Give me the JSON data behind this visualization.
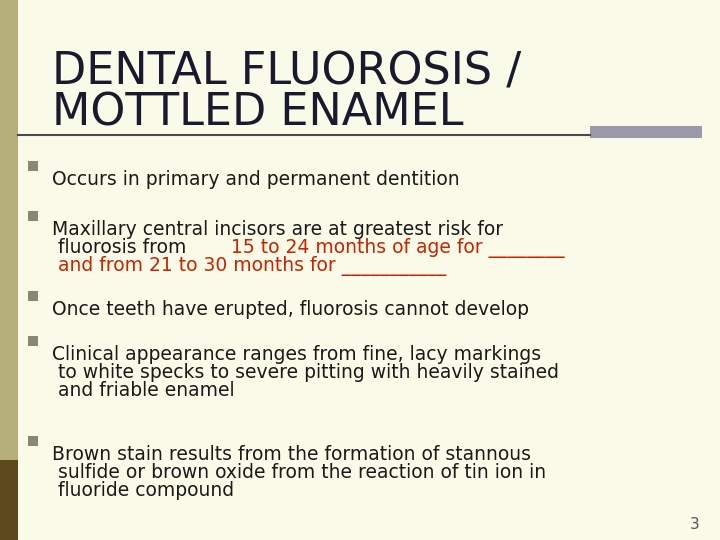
{
  "background_color": "#FAFAE8",
  "title_line1": "DENTAL FLUOROSIS /",
  "title_line2": "MOTTLED ENAMEL",
  "title_color": "#1a1a2e",
  "title_fontsize": 32,
  "divider_color": "#4a4a4a",
  "divider_accent_color": "#9999aa",
  "left_bar_color": "#5c4a1e",
  "bullet_color": "#888877",
  "text_color": "#1a1a1a",
  "highlight_color": "#cc2200",
  "page_number": "3",
  "bullet_points": [
    {
      "lines": [
        {
          "text": "Occurs in primary and permanent dentition",
          "segments": [
            {
              "t": "Occurs in primary and permanent dentition",
              "color": "#1a1a1a"
            }
          ]
        }
      ]
    },
    {
      "lines": [
        {
          "text": "Maxillary central incisors are at greatest risk for",
          "segments": [
            {
              "t": "Maxillary central incisors are at greatest risk for",
              "color": "#1a1a1a"
            }
          ]
        },
        {
          "text": "fluorosis from 15 to 24 months of age for ________ and from 21 to 30 months for ___________",
          "segments": [
            {
              "t": "fluorosis from ",
              "color": "#1a1a1a"
            },
            {
              "t": "15 to 24 months of age for ________",
              "color": "#cc2200"
            },
            {
              "t": " and from 21 to 30 months for ___________",
              "color": "#cc2200"
            }
          ]
        }
      ]
    },
    {
      "lines": [
        {
          "text": "Once teeth have erupted, fluorosis cannot develop",
          "segments": [
            {
              "t": "Once teeth have erupted, fluorosis cannot develop",
              "color": "#1a1a1a"
            }
          ]
        }
      ]
    },
    {
      "lines": [
        {
          "text": "Clinical appearance ranges from fine, lacy markings",
          "segments": [
            {
              "t": "Clinical appearance ranges from fine, lacy markings",
              "color": "#1a1a1a"
            }
          ]
        },
        {
          "text": "to white specks to severe pitting with heavily stained",
          "segments": [
            {
              "t": "to white specks to severe pitting with heavily stained",
              "color": "#1a1a1a"
            }
          ]
        },
        {
          "text": "and friable enamel",
          "segments": [
            {
              "t": "and friable enamel",
              "color": "#1a1a1a"
            }
          ]
        }
      ]
    },
    {
      "lines": [
        {
          "text": "Brown stain results from the formation of stannous",
          "segments": [
            {
              "t": "Brown stain results from the formation of stannous",
              "color": "#1a1a1a"
            }
          ]
        },
        {
          "text": "sulfide or brown oxide from the reaction of tin ion in",
          "segments": [
            {
              "t": "sulfide or brown oxide from the reaction of tin ion in",
              "color": "#1a1a1a"
            }
          ]
        },
        {
          "text": "fluoride compound",
          "segments": [
            {
              "t": "fluoride compound",
              "color": "#1a1a1a"
            }
          ]
        }
      ]
    }
  ],
  "font_family": "DejaVu Sans",
  "body_fontsize": 13.5
}
